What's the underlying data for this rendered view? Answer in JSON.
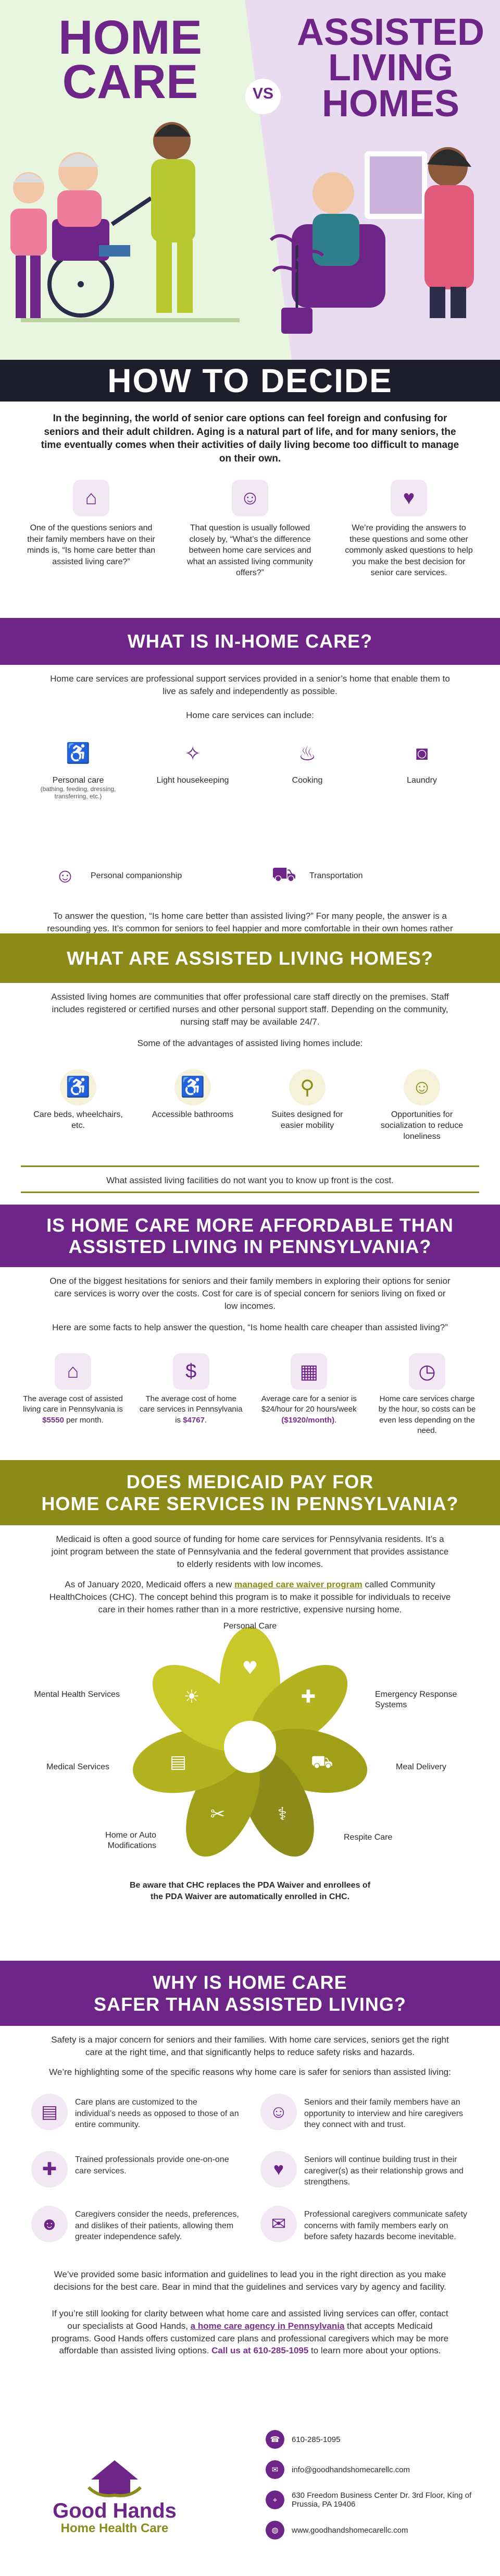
{
  "hero": {
    "left_title": [
      "HOME",
      "CARE"
    ],
    "vs": "VS",
    "right_title": [
      "ASSISTED",
      "LIVING",
      "HOMES"
    ],
    "subtitle": "HOW TO DECIDE"
  },
  "intro": {
    "text": "In the beginning, the world of senior care options can feel foreign and confusing for seniors and their adult children. Aging is a natural part of life, and for many seniors, the time eventually comes when their activities of daily living become too difficult to manage on their own.",
    "cols": [
      "One of the questions seniors and their family members have on their minds is, “Is home care better than assisted living care?”",
      "That question is usually followed closely by, “What’s the difference between home care services and what an assisted living community offers?”",
      "We’re providing the answers to these questions and some other commonly asked questions to help you make the best decision for senior care services."
    ]
  },
  "in_home": {
    "title": "WHAT IS IN-HOME CARE?",
    "text": "Home care services are professional support services provided in a senior’s home that enable them to live as safely and independently as possible.",
    "include_label": "Home care services can include:",
    "services": [
      {
        "label": "Personal care",
        "sub": "(bathing, feeding, dressing, transferring, etc.)"
      },
      {
        "label": "Light housekeeping",
        "sub": ""
      },
      {
        "label": "Cooking",
        "sub": ""
      },
      {
        "label": "Laundry",
        "sub": ""
      },
      {
        "label": "Personal companionship",
        "sub": ""
      },
      {
        "label": "Transportation",
        "sub": ""
      }
    ],
    "answer": "To answer the question, “Is home care better than assisted living?” For many people, the answer is a resounding yes. It’s common for seniors to feel happier and more comfortable in their own homes rather than move to a new place."
  },
  "assisted": {
    "title": "WHAT ARE ASSISTED LIVING HOMES?",
    "text": "Assisted living homes are communities that offer professional care staff directly on the premises. Staff includes registered or certified nurses and other personal support staff. Depending on the community, nursing staff may be available 24/7.",
    "adv_label": "Some of the advantages of assisted living homes include:",
    "advantages": [
      "Care beds, wheelchairs, etc.",
      "Accessible bathrooms",
      "Suites designed for easier mobility",
      "Opportunities for socialization to reduce loneliness"
    ],
    "note": "What assisted living facilities do not want you to know up front is the cost."
  },
  "affordable": {
    "title": [
      "IS HOME CARE MORE AFFORDABLE THAN",
      "ASSISTED LIVING IN PENNSYLVANIA?"
    ],
    "text": "One of the biggest hesitations for seniors and their family members in exploring their options for senior care services is worry over the costs. Cost for care is of special concern for seniors living on fixed or low incomes.",
    "facts_label": "Here are some facts to help answer the question, “Is home health care cheaper than assisted living?”",
    "facts": [
      {
        "pre": "The average cost of assisted living care in Pennsylvania is ",
        "hl": "$5550",
        "post": " per month."
      },
      {
        "pre": "The average cost of home care services in Pennsylvania is ",
        "hl": "$4767",
        "post": "."
      },
      {
        "pre": "Average care for a senior is $24/hour for 20 hours/week ",
        "hl": "($1920/month)",
        "post": "."
      },
      {
        "pre": "Home care services charge by the hour, so costs can be even less depending on the need.",
        "hl": "",
        "post": ""
      }
    ]
  },
  "medicaid": {
    "title": [
      "DOES MEDICAID PAY FOR",
      "HOME CARE SERVICES IN PENNSYLVANIA?"
    ],
    "text1": "Medicaid is often a good source of funding for home care services for Pennsylvania residents. It’s a joint program between the state of Pennsylvania and the federal government that provides assistance to elderly residents with low incomes.",
    "text2_pre": "As of January 2020, Medicaid offers a new ",
    "text2_link": "managed care waiver program",
    "text2_post": " called Community HealthChoices (CHC). The concept behind this program is to make it possible for individuals to receive care in their homes rather than in a more restrictive, expensive nursing home.",
    "petals": [
      "Personal Care",
      "Emergency Response Systems",
      "Meal Delivery",
      "Respite Care",
      "Home or Auto Modifications",
      "Medical Services",
      "Mental Health Services"
    ],
    "note": "Be aware that CHC replaces the PDA Waiver and enrollees of the PDA Waiver are automatically enrolled in CHC."
  },
  "safer": {
    "title": [
      "WHY IS HOME CARE",
      "SAFER THAN ASSISTED LIVING?"
    ],
    "text1": "Safety is a major concern for seniors and their families. With home care services, seniors get the right care at the right time, and that significantly helps to reduce safety risks and hazards.",
    "text2": "We’re highlighting some of the specific reasons why home care is safer for seniors than assisted living:",
    "reasons": [
      "Care plans are customized to the individual’s needs as opposed to those of an entire community.",
      "Seniors and their family members have an opportunity to interview and hire caregivers they connect with and trust.",
      "Trained professionals provide one-on-one care services.",
      "Seniors will continue building trust in their caregiver(s) as their relationship grows and strengthens.",
      "Caregivers consider the needs, preferences, and dislikes of their patients, allowing them greater independence safely.",
      "Professional caregivers communicate safety concerns with family members early on before safety hazards become inevitable."
    ],
    "closing1": "We’ve provided some basic information and guidelines to lead you in the right direction as you make decisions for the best care. Bear in mind that the guidelines and services vary by agency and facility.",
    "closing2_pre": "If you’re still looking for clarity between what home care and assisted living services can offer, contact our specialists at Good Hands, ",
    "closing2_link": "a home care agency in Pennsylvania",
    "closing2_mid": " that accepts Medicaid programs. Good Hands offers customized care plans and professional caregivers which may be more affordable than assisted living options. ",
    "closing2_call": "Call us at 610-285-1095",
    "closing2_post": " to learn more about your options."
  },
  "footer": {
    "brand1": "Good Hands",
    "brand2": "Home Health Care",
    "phone": "610-285-1095",
    "email": "info@goodhandshomecarellc.com",
    "address": "630 Freedom Business Center Dr. 3rd Floor, King of Prussia, PA 19406",
    "web": "www.goodhandshomecarellc.com"
  },
  "colors": {
    "purple": "#6d2588",
    "olive": "#8c8b19",
    "lavender": "#eadcf0",
    "mint": "#e4f3d6"
  }
}
